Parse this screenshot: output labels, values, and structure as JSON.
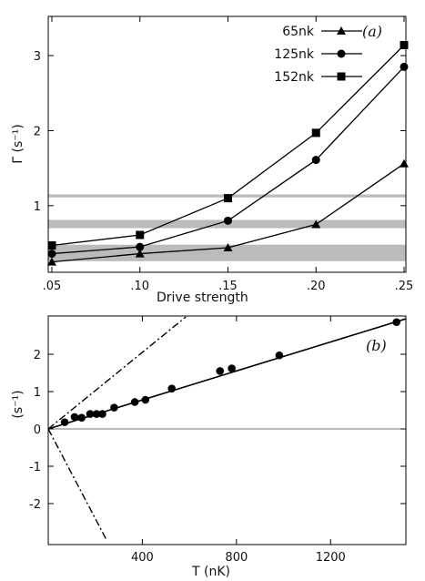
{
  "chart_data": [
    {
      "type": "line",
      "panel_label": "(a)",
      "xlabel": "Drive strength",
      "ylabel": "Γ (s⁻¹)",
      "xlim": [
        0.05,
        0.25
      ],
      "ylim": [
        0.1,
        3.5
      ],
      "x_ticks": [
        ".05",
        ".10",
        ".15",
        ".20",
        ".25"
      ],
      "y_ticks": [
        "1",
        "2",
        "3"
      ],
      "x": [
        0.05,
        0.1,
        0.15,
        0.2,
        0.25
      ],
      "series": [
        {
          "name": "65nk",
          "marker": "triangle",
          "values": [
            0.25,
            0.36,
            0.44,
            0.75,
            1.56
          ]
        },
        {
          "name": "125nk",
          "marker": "circle",
          "values": [
            0.36,
            0.45,
            0.8,
            1.61,
            2.85
          ]
        },
        {
          "name": "152nk",
          "marker": "square",
          "values": [
            0.47,
            0.61,
            1.1,
            1.97,
            3.14
          ]
        }
      ],
      "bands": [
        {
          "y0": 1.11,
          "y1": 1.15,
          "color": "#bbbbbb"
        },
        {
          "y0": 0.7,
          "y1": 0.81,
          "color": "#bbbbbb"
        },
        {
          "y0": 0.26,
          "y1": 0.48,
          "color": "#bbbbbb"
        }
      ],
      "legend_position": "top-right",
      "grid": false
    },
    {
      "type": "scatter",
      "panel_label": "(b)",
      "xlabel": "T (nK)",
      "ylabel": "(s⁻¹)",
      "xlim": [
        0,
        1520
      ],
      "ylim": [
        -3,
        3
      ],
      "x_ticks": [
        "400",
        "800",
        "1200"
      ],
      "y_ticks": [
        "-2",
        "-1",
        "0",
        "1",
        "2"
      ],
      "points": [
        {
          "x": 70,
          "y": 0.18
        },
        {
          "x": 112,
          "y": 0.32
        },
        {
          "x": 142,
          "y": 0.3
        },
        {
          "x": 178,
          "y": 0.4
        },
        {
          "x": 205,
          "y": 0.4
        },
        {
          "x": 230,
          "y": 0.4
        },
        {
          "x": 280,
          "y": 0.57
        },
        {
          "x": 368,
          "y": 0.72
        },
        {
          "x": 413,
          "y": 0.78
        },
        {
          "x": 525,
          "y": 1.08
        },
        {
          "x": 730,
          "y": 1.55
        },
        {
          "x": 780,
          "y": 1.62
        },
        {
          "x": 982,
          "y": 1.97
        },
        {
          "x": 1480,
          "y": 2.86
        }
      ],
      "fit_line": {
        "x": [
          0,
          1520
        ],
        "y": [
          0.0,
          2.95
        ]
      },
      "bound_lines": [
        {
          "x": [
            0,
            585
          ],
          "y": [
            0.0,
            3.0
          ],
          "style": "dash-dot"
        },
        {
          "x": [
            0,
            250
          ],
          "y": [
            0.0,
            -3.0
          ],
          "style": "dash-dot"
        }
      ],
      "zero_line": 0,
      "grid": false
    }
  ],
  "colors": {
    "data": "#000000",
    "band": "#bbbbbb",
    "axis": "#000000"
  }
}
